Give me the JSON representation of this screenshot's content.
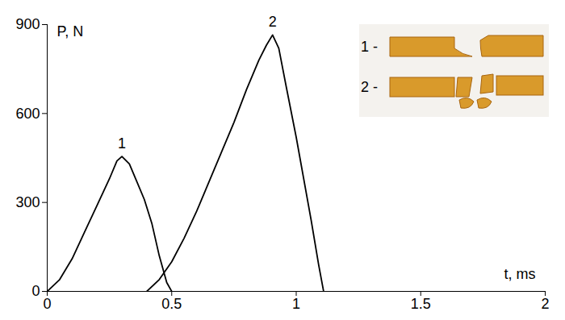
{
  "chart_data": {
    "type": "line",
    "x_label": "t, ms",
    "y_label": "P, N",
    "series": [
      {
        "name": "1",
        "color": "#000000",
        "x": [
          0,
          0.05,
          0.1,
          0.15,
          0.2,
          0.25,
          0.28,
          0.3,
          0.33,
          0.36,
          0.39,
          0.42,
          0.45,
          0.48,
          0.5
        ],
        "values": [
          0,
          40,
          110,
          200,
          290,
          380,
          440,
          455,
          430,
          370,
          310,
          230,
          120,
          30,
          0
        ]
      },
      {
        "name": "2",
        "color": "#000000",
        "x": [
          0.4,
          0.45,
          0.5,
          0.55,
          0.6,
          0.65,
          0.7,
          0.75,
          0.8,
          0.85,
          0.88,
          0.905,
          0.93,
          0.96,
          1.0,
          1.03,
          1.06,
          1.09,
          1.11
        ],
        "values": [
          0,
          40,
          100,
          180,
          270,
          370,
          470,
          570,
          680,
          780,
          830,
          865,
          820,
          690,
          520,
          380,
          240,
          90,
          0
        ]
      }
    ],
    "xlim": [
      0,
      2
    ],
    "xticks": [
      0,
      0.5,
      1,
      1.5,
      2
    ],
    "ylim": [
      0,
      900
    ],
    "yticks": [
      0,
      300,
      600,
      900
    ],
    "grid": false,
    "annotations": [
      "1 -",
      "2 -"
    ]
  }
}
